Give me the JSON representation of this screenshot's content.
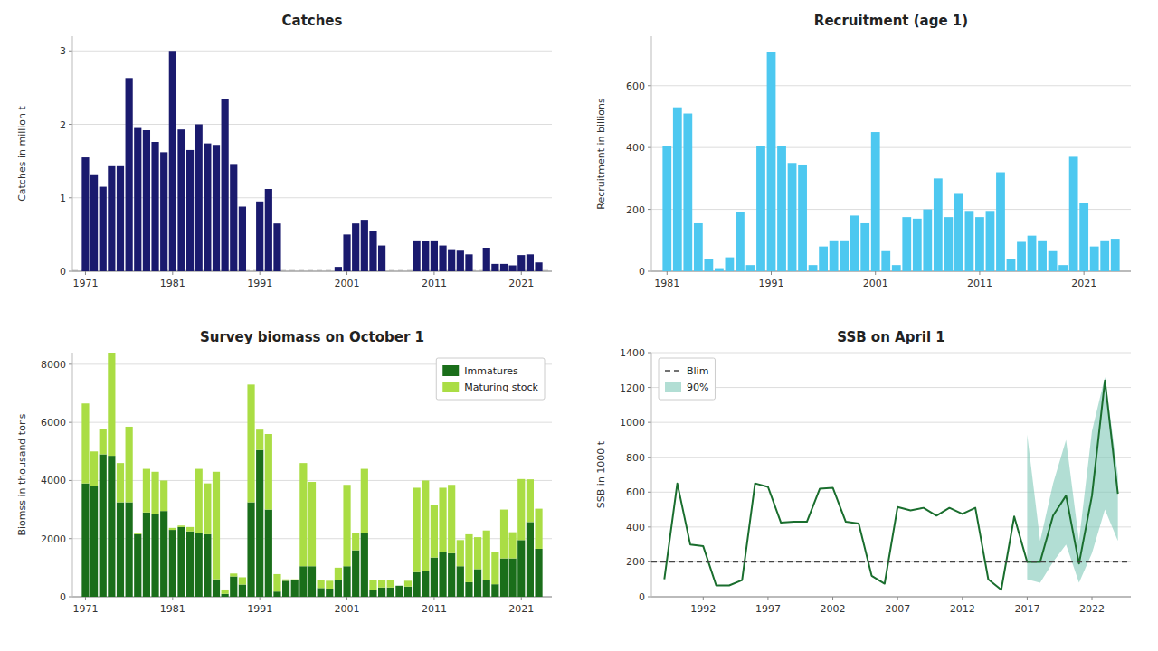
{
  "chart_data": [
    {
      "type": "bar",
      "title": "Catches",
      "y_label": "Catches in million t",
      "x": [
        1971,
        1972,
        1973,
        1974,
        1975,
        1976,
        1977,
        1978,
        1979,
        1980,
        1981,
        1982,
        1983,
        1984,
        1985,
        1986,
        1987,
        1988,
        1989,
        1991,
        1992,
        1993,
        2000,
        2001,
        2002,
        2003,
        2004,
        2005,
        2009,
        2010,
        2011,
        2012,
        2013,
        2014,
        2015,
        2017,
        2018,
        2019,
        2020,
        2021,
        2022,
        2023
      ],
      "values": [
        1.55,
        1.32,
        1.15,
        1.43,
        1.43,
        2.63,
        1.95,
        1.92,
        1.76,
        1.62,
        3.0,
        1.93,
        1.65,
        2.0,
        1.74,
        1.72,
        2.35,
        1.46,
        0.88,
        0.95,
        1.12,
        0.65,
        0.06,
        0.5,
        0.65,
        0.7,
        0.55,
        0.35,
        0.42,
        0.41,
        0.42,
        0.35,
        0.3,
        0.28,
        0.23,
        0.32,
        0.1,
        0.1,
        0.08,
        0.22,
        0.23,
        0.12
      ],
      "color": "#1a1a6e",
      "reference_line": {
        "value": 0.01,
        "color": "#aaaaaa",
        "line_style": "dashed"
      },
      "xlim": [
        1969.5,
        2024.5
      ],
      "xticks": [
        1971,
        1981,
        1991,
        2001,
        2011,
        2021
      ],
      "ylim": [
        0,
        3.2
      ],
      "yticks": [
        0,
        1,
        2,
        3
      ],
      "grid": true
    },
    {
      "type": "bar",
      "title": "Recruitment (age 1)",
      "y_label": "Recruitment in billions",
      "x": [
        1981,
        1982,
        1983,
        1984,
        1985,
        1986,
        1987,
        1988,
        1989,
        1990,
        1991,
        1992,
        1993,
        1994,
        1995,
        1996,
        1997,
        1998,
        1999,
        2000,
        2001,
        2002,
        2003,
        2004,
        2005,
        2006,
        2007,
        2008,
        2009,
        2010,
        2011,
        2012,
        2013,
        2014,
        2015,
        2016,
        2017,
        2018,
        2019,
        2020,
        2021,
        2022,
        2023,
        2024
      ],
      "values": [
        405,
        530,
        510,
        155,
        40,
        10,
        45,
        190,
        20,
        405,
        710,
        405,
        350,
        345,
        20,
        80,
        100,
        100,
        180,
        155,
        450,
        65,
        20,
        175,
        170,
        200,
        300,
        175,
        250,
        195,
        175,
        195,
        320,
        40,
        95,
        115,
        100,
        65,
        20,
        370,
        220,
        80,
        100,
        105
      ],
      "color": "#4dc8f0",
      "xlim": [
        1979.5,
        2025.5
      ],
      "xticks": [
        1981,
        1991,
        2001,
        2011,
        2021
      ],
      "ylim": [
        0,
        760
      ],
      "yticks": [
        0,
        200,
        400,
        600
      ],
      "grid": true
    },
    {
      "type": "bar",
      "title": "Survey biomass on October 1",
      "y_label": "Biomss in thousand tons",
      "stacked": true,
      "legend": "upper right",
      "x": [
        1971,
        1972,
        1973,
        1974,
        1975,
        1976,
        1977,
        1978,
        1979,
        1980,
        1981,
        1982,
        1983,
        1984,
        1985,
        1986,
        1987,
        1988,
        1989,
        1990,
        1991,
        1992,
        1993,
        1994,
        1995,
        1996,
        1997,
        1998,
        1999,
        2000,
        2001,
        2002,
        2003,
        2004,
        2005,
        2006,
        2007,
        2008,
        2009,
        2010,
        2011,
        2012,
        2013,
        2014,
        2015,
        2016,
        2017,
        2018,
        2019,
        2020,
        2021,
        2022,
        2023
      ],
      "series": [
        {
          "name": "Immatures",
          "color": "#1a6e1a",
          "values": [
            3900,
            3800,
            4900,
            4850,
            3250,
            3250,
            2150,
            2900,
            2850,
            2950,
            2300,
            2400,
            2250,
            2200,
            2150,
            600,
            100,
            700,
            420,
            3250,
            5050,
            3000,
            180,
            550,
            580,
            1050,
            1050,
            300,
            280,
            570,
            1050,
            1600,
            2200,
            230,
            320,
            320,
            380,
            350,
            850,
            900,
            1350,
            1550,
            1500,
            1050,
            500,
            950,
            580,
            430,
            1320,
            1320,
            1950,
            2570,
            1650
          ]
        },
        {
          "name": "Maturing stock",
          "color": "#aadd44",
          "values": [
            2750,
            1200,
            870,
            3550,
            1350,
            2600,
            50,
            1500,
            1450,
            1050,
            70,
            50,
            150,
            2200,
            1750,
            3700,
            150,
            100,
            250,
            4050,
            700,
            2600,
            600,
            50,
            20,
            3550,
            2900,
            260,
            270,
            430,
            2800,
            600,
            2200,
            350,
            250,
            250,
            0,
            200,
            2900,
            3100,
            1800,
            2200,
            2350,
            900,
            1650,
            1100,
            1700,
            1100,
            1680,
            900,
            2100,
            1470,
            1380
          ]
        }
      ],
      "xlim": [
        1969.5,
        2024.5
      ],
      "xticks": [
        1971,
        1981,
        1991,
        2001,
        2011,
        2021
      ],
      "ylim": [
        0,
        8400
      ],
      "yticks": [
        0,
        2000,
        4000,
        6000,
        8000
      ],
      "grid": true
    },
    {
      "type": "line",
      "title": "SSB on April 1",
      "y_label": "SSB in 1000 t",
      "legend": "upper left",
      "x": [
        1989,
        1990,
        1991,
        1992,
        1993,
        1994,
        1995,
        1996,
        1997,
        1998,
        1999,
        2000,
        2001,
        2002,
        2003,
        2004,
        2005,
        2006,
        2007,
        2008,
        2009,
        2010,
        2011,
        2012,
        2013,
        2014,
        2015,
        2016,
        2017,
        2018,
        2019,
        2020,
        2021,
        2022,
        2023,
        2024
      ],
      "series": [
        {
          "color": "#1a6e2e",
          "values": [
            100,
            650,
            300,
            290,
            65,
            65,
            95,
            650,
            630,
            425,
            430,
            430,
            620,
            625,
            430,
            420,
            120,
            75,
            515,
            495,
            510,
            465,
            510,
            475,
            510,
            100,
            40,
            460,
            200,
            200,
            465,
            580,
            190,
            580,
            1240,
            590
          ]
        }
      ],
      "band": {
        "name": "90%",
        "color": "#7ec8b8",
        "low": [
          null,
          null,
          null,
          null,
          null,
          null,
          null,
          null,
          null,
          null,
          null,
          null,
          null,
          null,
          null,
          null,
          null,
          null,
          null,
          null,
          null,
          null,
          null,
          null,
          null,
          null,
          null,
          null,
          100,
          80,
          200,
          300,
          80,
          250,
          500,
          320
        ],
        "high": [
          null,
          null,
          null,
          null,
          null,
          null,
          null,
          null,
          null,
          null,
          null,
          null,
          null,
          null,
          null,
          null,
          null,
          null,
          null,
          null,
          null,
          null,
          null,
          null,
          null,
          null,
          null,
          null,
          930,
          320,
          650,
          900,
          320,
          950,
          1260,
          700
        ]
      },
      "blim": {
        "name": "Blim",
        "value": 200,
        "color": "#444444",
        "line_style": "dashed"
      },
      "xlim": [
        1988,
        2025
      ],
      "xticks": [
        1992,
        1997,
        2002,
        2007,
        2012,
        2017,
        2022
      ],
      "ylim": [
        0,
        1400
      ],
      "yticks": [
        0,
        200,
        400,
        600,
        800,
        1000,
        1200,
        1400
      ],
      "grid": true
    }
  ]
}
